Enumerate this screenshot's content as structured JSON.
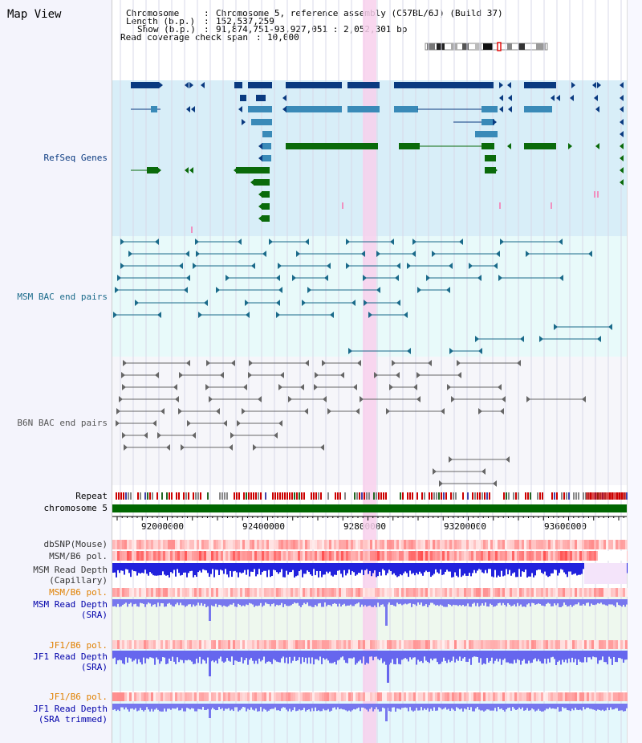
{
  "page": {
    "title": "Map View",
    "background_left": "#f4f4fc"
  },
  "header": {
    "chromosome_key": "Chromosome",
    "chromosome_value": "Chromosome 5, reference assembly (C57BL/6J) (Build 37)",
    "length_key": "Length (b.p.)",
    "length_value": "152,537,259",
    "show_key": "Show (b.p.)",
    "show_value": "91,874,751-93,927,051 : 2,052,301 bp",
    "coverage_key": "Read coverage check span",
    "coverage_value": "10,000"
  },
  "tracks": {
    "refseq": {
      "label": "RefSeq Genes",
      "color": "#0a3a80",
      "bg": "#d8eef8"
    },
    "msm_bac": {
      "label": "MSM BAC end pairs",
      "color": "#1a6a8a",
      "bg": "#e8fafa"
    },
    "b6n_bac": {
      "label": "B6N BAC end pairs",
      "color": "#555555",
      "bg": "#f6f6fa"
    },
    "repeat": {
      "label": "Repeat"
    },
    "chromosome": {
      "label": "chromosome 5",
      "color": "#006600"
    },
    "axis": {
      "ticks": [
        "92000000",
        "92400000",
        "92800000",
        "93200000",
        "93600000"
      ]
    },
    "dbsnp": {
      "label": "dbSNP(Mouse)",
      "color": "#333333"
    },
    "msm_b6_pol_1": {
      "label": "MSM/B6 pol.",
      "color": "#333333"
    },
    "msm_depth_cap": {
      "label1": "MSM Read Depth",
      "label2": "(Capillary)",
      "color": "#333333"
    },
    "msm_b6_pol_2": {
      "label": "MSM/B6 pol.",
      "color": "#e08000"
    },
    "msm_depth_sra": {
      "label1": "MSM Read Depth",
      "label2": "(SRA)",
      "color": "#0000aa"
    },
    "jf1_b6_pol_1": {
      "label": "JF1/B6 pol.",
      "color": "#e08000"
    },
    "jf1_depth_sra": {
      "label1": "JF1 Read Depth",
      "label2": "(SRA)",
      "color": "#0000aa"
    },
    "jf1_b6_pol_2": {
      "label": "JF1/B6 pol.",
      "color": "#e08000"
    },
    "jf1_depth_trim": {
      "label1": "JF1 Read Depth",
      "label2": "(SRA trimmed)",
      "color": "#0000aa"
    }
  }
}
